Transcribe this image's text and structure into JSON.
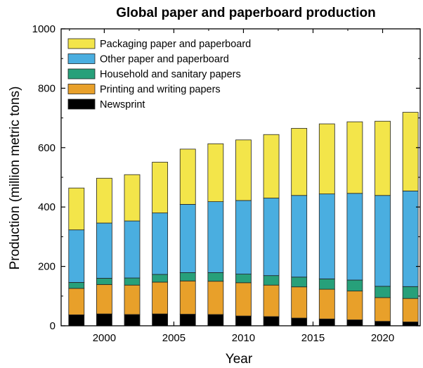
{
  "chart_data": {
    "type": "bar",
    "stacked": true,
    "title": "Global paper and paperboard production",
    "xlabel": "Year",
    "ylabel": "Production (million metric tons)",
    "ylim": [
      0,
      1000
    ],
    "y_ticks": [
      "0",
      "200",
      "400",
      "600",
      "800",
      "1000"
    ],
    "x_ticks": [
      "2000",
      "2005",
      "2010",
      "2015",
      "2020"
    ],
    "x_tick_values": [
      2000,
      2005,
      2010,
      2015,
      2020
    ],
    "xlim": [
      1996.9,
      2022.7
    ],
    "grid": false,
    "legend_position": "top-left",
    "categories": [
      1998,
      2000,
      2002,
      2004,
      2006,
      2008,
      2010,
      2012,
      2014,
      2016,
      2018,
      2020,
      2022
    ],
    "series": [
      {
        "name": "Newsprint",
        "color": "#000000",
        "values": [
          37,
          40,
          38,
          40,
          39,
          38,
          33,
          31,
          26,
          23,
          20,
          15,
          13
        ]
      },
      {
        "name": "Printing and writing papers",
        "color": "#e8a02a",
        "values": [
          89,
          99,
          99,
          107,
          112,
          112,
          112,
          106,
          105,
          100,
          97,
          80,
          79
        ]
      },
      {
        "name": "Household and sanitary papers",
        "color": "#27a07a",
        "values": [
          20,
          21,
          24,
          26,
          28,
          29,
          29,
          32,
          33,
          35,
          37,
          38,
          40
        ]
      },
      {
        "name": "Other paper and paperboard",
        "color": "#4aaee0",
        "values": [
          177,
          186,
          192,
          207,
          230,
          239,
          248,
          261,
          275,
          286,
          292,
          306,
          322
        ]
      },
      {
        "name": "Packaging paper and paperboard",
        "color": "#f3e54a",
        "values": [
          141,
          151,
          156,
          171,
          186,
          195,
          204,
          214,
          226,
          236,
          241,
          250,
          265
        ]
      }
    ]
  }
}
